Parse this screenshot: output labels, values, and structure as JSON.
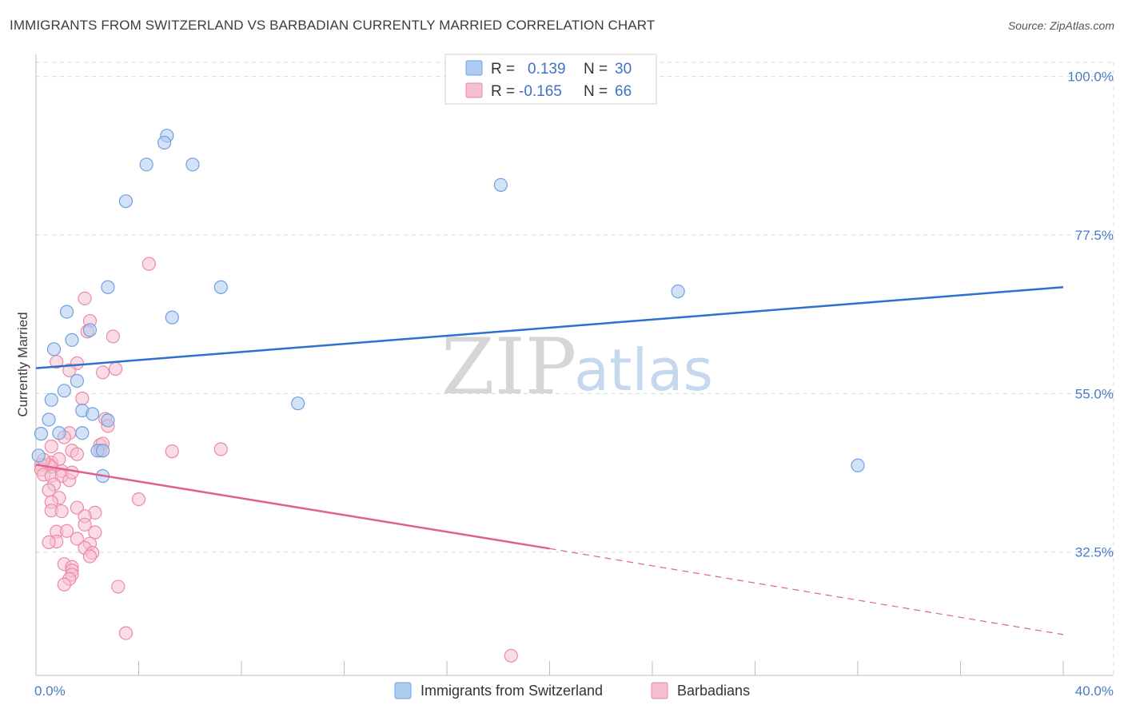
{
  "header": {
    "title": "IMMIGRANTS FROM SWITZERLAND VS BARBADIAN CURRENTLY MARRIED CORRELATION CHART",
    "source": "Source: ZipAtlas.com"
  },
  "watermark": {
    "zip": "ZIP",
    "atlas": "atlas"
  },
  "legend": {
    "rows": [
      {
        "r_label": "R =",
        "r_value": "0.139",
        "n_label": "N =",
        "n_value": "30"
      },
      {
        "r_label": "R =",
        "r_value": "-0.165",
        "n_label": "N =",
        "n_value": "66"
      }
    ]
  },
  "colors": {
    "series1": "#6fa0e0",
    "series1_fill": "#aecbf0",
    "series1_line": "#2e6fcf",
    "series2": "#eb8aa8",
    "series2_fill": "#f6bfd0",
    "series2_line": "#e0608f",
    "grid": "#d9d9d9",
    "tick_text": "#4a7cc7"
  },
  "chart_data": {
    "type": "scatter",
    "title": "IMMIGRANTS FROM SWITZERLAND VS BARBADIAN CURRENTLY MARRIED CORRELATION CHART",
    "xlabel": "",
    "ylabel": "Currently Married",
    "xlim": [
      0,
      40
    ],
    "ylim": [
      15,
      102
    ],
    "x_tick_labels": [
      "0.0%",
      "40.0%"
    ],
    "y_ticks": [
      32.5,
      55.0,
      77.5,
      100.0
    ],
    "y_tick_labels": [
      "32.5%",
      "55.0%",
      "77.5%",
      "100.0%"
    ],
    "grid": true,
    "legend_position": "top-center",
    "series": [
      {
        "name": "Immigrants from Switzerland",
        "r": 0.139,
        "n": 30,
        "trend": {
          "x0": 0,
          "y0": 58.6,
          "x1": 40,
          "y1": 70.1
        },
        "points": [
          [
            5.1,
            91.6
          ],
          [
            5.0,
            90.6
          ],
          [
            4.3,
            87.5
          ],
          [
            6.1,
            87.5
          ],
          [
            3.5,
            82.3
          ],
          [
            18.1,
            84.6
          ],
          [
            2.8,
            70.1
          ],
          [
            7.2,
            70.1
          ],
          [
            25.0,
            69.5
          ],
          [
            1.2,
            66.6
          ],
          [
            5.3,
            65.8
          ],
          [
            2.1,
            64.0
          ],
          [
            1.4,
            62.6
          ],
          [
            0.7,
            61.3
          ],
          [
            1.6,
            56.8
          ],
          [
            1.1,
            55.4
          ],
          [
            0.6,
            54.1
          ],
          [
            10.2,
            53.6
          ],
          [
            1.8,
            52.6
          ],
          [
            2.2,
            52.1
          ],
          [
            0.5,
            51.3
          ],
          [
            2.8,
            51.2
          ],
          [
            0.2,
            49.3
          ],
          [
            0.9,
            49.4
          ],
          [
            1.8,
            49.4
          ],
          [
            2.4,
            46.9
          ],
          [
            2.6,
            46.9
          ],
          [
            0.1,
            46.2
          ],
          [
            2.6,
            43.3
          ],
          [
            32.0,
            44.8
          ]
        ]
      },
      {
        "name": "Barbadians",
        "r": -0.165,
        "n": 66,
        "trend": {
          "x0": 0,
          "y0": 44.9,
          "x1": 20,
          "y1": 33.0
        },
        "trend_dashed": {
          "x0": 20,
          "y0": 33.0,
          "x1": 40,
          "y1": 20.8
        },
        "points": [
          [
            4.4,
            73.4
          ],
          [
            1.9,
            68.5
          ],
          [
            2.1,
            65.3
          ],
          [
            3.0,
            63.1
          ],
          [
            2.0,
            63.8
          ],
          [
            0.8,
            59.5
          ],
          [
            1.6,
            59.3
          ],
          [
            3.1,
            58.5
          ],
          [
            2.6,
            58.0
          ],
          [
            1.3,
            58.3
          ],
          [
            1.8,
            54.3
          ],
          [
            2.7,
            51.4
          ],
          [
            2.8,
            50.4
          ],
          [
            1.3,
            49.4
          ],
          [
            1.1,
            48.8
          ],
          [
            2.5,
            47.7
          ],
          [
            0.6,
            47.5
          ],
          [
            2.6,
            47.9
          ],
          [
            1.4,
            46.9
          ],
          [
            1.6,
            46.4
          ],
          [
            2.5,
            46.9
          ],
          [
            5.3,
            46.8
          ],
          [
            7.2,
            47.1
          ],
          [
            0.6,
            45.2
          ],
          [
            0.9,
            45.7
          ],
          [
            0.5,
            44.9
          ],
          [
            0.2,
            44.9
          ],
          [
            0.6,
            44.6
          ],
          [
            0.2,
            44.2
          ],
          [
            1.0,
            44.0
          ],
          [
            0.3,
            43.5
          ],
          [
            0.6,
            43.3
          ],
          [
            1.0,
            43.3
          ],
          [
            0.7,
            42.1
          ],
          [
            1.3,
            42.7
          ],
          [
            1.4,
            43.8
          ],
          [
            0.5,
            41.3
          ],
          [
            4.0,
            40.0
          ],
          [
            0.9,
            40.2
          ],
          [
            0.6,
            39.6
          ],
          [
            0.6,
            38.4
          ],
          [
            1.0,
            38.3
          ],
          [
            1.6,
            38.8
          ],
          [
            2.3,
            38.1
          ],
          [
            1.9,
            37.6
          ],
          [
            1.9,
            36.4
          ],
          [
            0.8,
            35.4
          ],
          [
            1.2,
            35.5
          ],
          [
            2.3,
            35.3
          ],
          [
            0.8,
            34.0
          ],
          [
            0.5,
            33.9
          ],
          [
            1.6,
            34.4
          ],
          [
            2.1,
            33.7
          ],
          [
            1.9,
            33.1
          ],
          [
            2.2,
            32.4
          ],
          [
            2.1,
            31.9
          ],
          [
            1.1,
            30.8
          ],
          [
            1.4,
            30.4
          ],
          [
            1.4,
            29.9
          ],
          [
            1.4,
            29.3
          ],
          [
            1.3,
            28.7
          ],
          [
            1.1,
            27.9
          ],
          [
            3.2,
            27.6
          ],
          [
            3.5,
            21.0
          ],
          [
            18.5,
            17.8
          ],
          [
            0.3,
            45.6
          ]
        ]
      }
    ]
  }
}
